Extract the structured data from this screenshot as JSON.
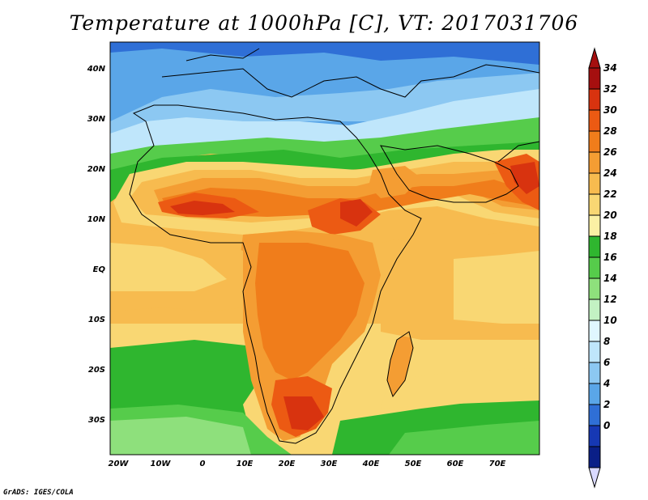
{
  "title": "Temperature at 1000hPa [C], VT: 2017031706",
  "credit": "GrADS: IGES/COLA",
  "lat_labels": [
    "40N",
    "30N",
    "20N",
    "10N",
    "EQ",
    "10S",
    "20S",
    "30S"
  ],
  "lon_labels": [
    "20W",
    "10W",
    "0",
    "10E",
    "20E",
    "30E",
    "40E",
    "50E",
    "60E",
    "70E"
  ],
  "colorbar": {
    "levels": [
      "34",
      "32",
      "30",
      "28",
      "26",
      "24",
      "22",
      "20",
      "18",
      "16",
      "14",
      "12",
      "10",
      "8",
      "6",
      "4",
      "2",
      "0"
    ],
    "colors": [
      "#a50f0f",
      "#d8330f",
      "#ec5a13",
      "#f07d1b",
      "#f49d33",
      "#f7bb4f",
      "#f9d773",
      "#fbf0a4",
      "#2fb62f",
      "#56cc4b",
      "#8ee07c",
      "#c3f2c3",
      "#e0f7ff",
      "#bfe6fb",
      "#8cc8f2",
      "#5aa6e8",
      "#2f6fd6",
      "#1638b4",
      "#0a1f87"
    ],
    "high_arrow_color": "#a50f0f",
    "low_arrow_color": "#d9d9ff"
  }
}
